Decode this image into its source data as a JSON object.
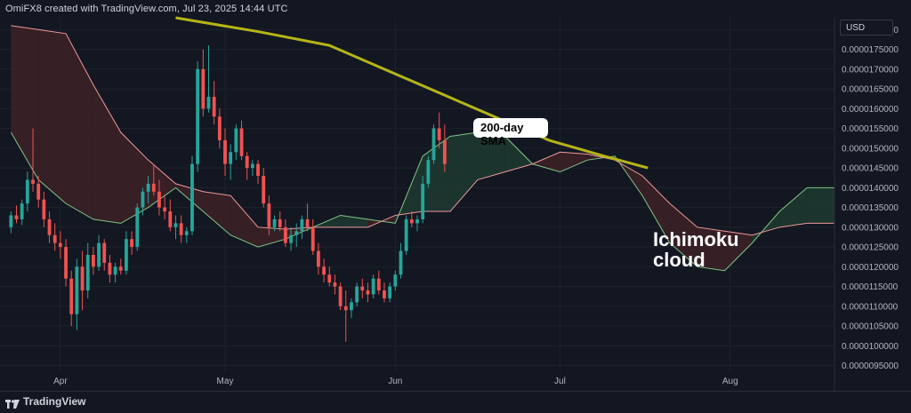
{
  "header": {
    "text": "OmiFX8 created with TradingView.com, Jul 23, 2025 14:44 UTC"
  },
  "currency": "USD",
  "footer": {
    "brand": "TradingView"
  },
  "annotations": {
    "sma_label": "200-day SMA",
    "cloud_label": "Ichimoku cloud"
  },
  "colors": {
    "background": "#131722",
    "up": "#26a69a",
    "down": "#ef5350",
    "sma": "#b5b517",
    "cloud_bull": "#1e3a30",
    "cloud_bear": "#3d2126",
    "span_a": "#81c784",
    "span_b": "#ef9a9a"
  },
  "chart_data": {
    "type": "candlestick",
    "title": "",
    "ylabel": "",
    "ylim": [
      9.4e-06,
      1.83e-05
    ],
    "y_ticks": [
      "0.0000095000",
      "0.0000100000",
      "0.0000105000",
      "0.0000110000",
      "0.0000115000",
      "0.0000120000",
      "0.0000125000",
      "0.0000130000",
      "0.0000135000",
      "0.0000140000",
      "0.0000145000",
      "0.0000150000",
      "0.0000155000",
      "0.0000160000",
      "0.0000165000",
      "0.0000170000",
      "0.0000175000",
      "0.0000180000"
    ],
    "x_ticks": [
      "Apr",
      "May",
      "Jun",
      "Jul",
      "Aug"
    ],
    "x_tick_days": [
      9,
      39,
      70,
      100,
      131
    ],
    "x_range_days": [
      -2,
      150
    ],
    "candles_start_day": 0,
    "candles": [
      [
        13.0,
        13.4,
        12.85,
        13.3
      ],
      [
        13.3,
        13.55,
        13.1,
        13.2
      ],
      [
        13.2,
        13.7,
        13.05,
        13.6
      ],
      [
        13.6,
        14.4,
        13.4,
        14.2
      ],
      [
        14.2,
        15.5,
        13.9,
        14.1
      ],
      [
        14.1,
        14.3,
        13.5,
        13.7
      ],
      [
        13.7,
        13.9,
        13.0,
        13.2
      ],
      [
        13.2,
        13.4,
        12.6,
        12.8
      ],
      [
        12.8,
        13.1,
        12.4,
        12.6
      ],
      [
        12.6,
        12.9,
        12.2,
        12.5
      ],
      [
        12.5,
        12.7,
        11.5,
        11.7
      ],
      [
        11.7,
        11.9,
        10.5,
        10.8
      ],
      [
        10.8,
        12.2,
        10.4,
        12.0
      ],
      [
        12.0,
        12.4,
        10.9,
        11.4
      ],
      [
        11.4,
        12.6,
        11.2,
        12.3
      ],
      [
        12.3,
        12.5,
        11.8,
        12.0
      ],
      [
        12.0,
        12.8,
        11.9,
        12.6
      ],
      [
        12.6,
        12.7,
        11.9,
        12.1
      ],
      [
        12.1,
        12.3,
        11.6,
        11.8
      ],
      [
        11.8,
        12.1,
        11.6,
        12.0
      ],
      [
        12.0,
        12.2,
        11.8,
        11.9
      ],
      [
        11.9,
        12.9,
        11.8,
        12.7
      ],
      [
        12.7,
        12.9,
        12.3,
        12.5
      ],
      [
        12.5,
        13.6,
        12.4,
        13.5
      ],
      [
        13.5,
        14.0,
        13.3,
        13.9
      ],
      [
        13.9,
        14.3,
        13.6,
        14.1
      ],
      [
        14.1,
        14.6,
        13.8,
        13.9
      ],
      [
        13.9,
        14.2,
        13.3,
        13.5
      ],
      [
        13.5,
        13.8,
        13.2,
        13.4
      ],
      [
        13.4,
        13.7,
        12.9,
        13.0
      ],
      [
        13.0,
        13.3,
        12.7,
        13.1
      ],
      [
        13.1,
        13.3,
        12.6,
        12.8
      ],
      [
        12.8,
        13.0,
        12.6,
        12.9
      ],
      [
        12.9,
        14.8,
        12.8,
        14.6
      ],
      [
        14.6,
        17.2,
        14.4,
        17.0
      ],
      [
        17.0,
        17.5,
        15.8,
        16.0
      ],
      [
        16.0,
        17.6,
        15.9,
        16.3
      ],
      [
        16.3,
        16.7,
        15.6,
        15.8
      ],
      [
        15.8,
        16.0,
        15.0,
        15.2
      ],
      [
        15.2,
        15.5,
        14.3,
        14.6
      ],
      [
        14.6,
        15.1,
        14.2,
        14.9
      ],
      [
        14.9,
        15.6,
        14.7,
        15.5
      ],
      [
        15.5,
        15.7,
        14.7,
        14.8
      ],
      [
        14.8,
        14.9,
        14.2,
        14.5
      ],
      [
        14.5,
        14.7,
        14.3,
        14.6
      ],
      [
        14.6,
        14.7,
        14.1,
        14.3
      ],
      [
        14.3,
        14.5,
        13.5,
        13.6
      ],
      [
        13.6,
        13.8,
        12.8,
        13.0
      ],
      [
        13.0,
        13.3,
        12.9,
        13.2
      ],
      [
        13.2,
        13.4,
        12.9,
        13.0
      ],
      [
        13.0,
        13.2,
        12.5,
        12.6
      ],
      [
        12.6,
        13.0,
        12.4,
        12.8
      ],
      [
        12.8,
        13.1,
        12.5,
        12.9
      ],
      [
        12.9,
        13.3,
        12.7,
        13.2
      ],
      [
        13.2,
        13.6,
        12.9,
        13.0
      ],
      [
        13.0,
        13.2,
        12.3,
        12.4
      ],
      [
        12.4,
        12.6,
        11.8,
        12.0
      ],
      [
        12.0,
        12.2,
        11.6,
        11.8
      ],
      [
        11.8,
        12.0,
        11.5,
        11.6
      ],
      [
        11.6,
        11.8,
        11.3,
        11.5
      ],
      [
        11.5,
        11.6,
        10.9,
        11.0
      ],
      [
        11.0,
        11.4,
        10.1,
        10.9
      ],
      [
        10.9,
        11.2,
        10.7,
        11.1
      ],
      [
        11.1,
        11.6,
        11.0,
        11.5
      ],
      [
        11.5,
        11.7,
        11.2,
        11.4
      ],
      [
        11.4,
        11.6,
        11.1,
        11.3
      ],
      [
        11.3,
        11.8,
        11.2,
        11.7
      ],
      [
        11.7,
        11.9,
        11.3,
        11.4
      ],
      [
        11.4,
        11.6,
        11.1,
        11.2
      ],
      [
        11.2,
        11.6,
        11.1,
        11.5
      ],
      [
        11.5,
        11.9,
        11.4,
        11.8
      ],
      [
        11.8,
        12.6,
        11.7,
        12.4
      ],
      [
        12.4,
        13.3,
        12.3,
        13.2
      ],
      [
        13.2,
        13.4,
        13.0,
        13.1
      ],
      [
        13.1,
        13.3,
        12.9,
        13.2
      ],
      [
        13.2,
        14.3,
        13.1,
        14.1
      ],
      [
        14.1,
        14.8,
        14.0,
        14.7
      ],
      [
        14.7,
        15.6,
        14.6,
        15.5
      ],
      [
        15.5,
        15.9,
        15.0,
        15.2
      ],
      [
        15.2,
        15.6,
        14.4,
        14.6
      ]
    ],
    "sma_200": {
      "name": "200-day SMA",
      "days": [
        30,
        45,
        58,
        68,
        78,
        88,
        98,
        108,
        116
      ],
      "values": [
        18.3,
        17.95,
        17.6,
        17.0,
        16.4,
        15.8,
        15.2,
        14.8,
        14.5
      ]
    },
    "span_a": {
      "days": [
        0,
        5,
        10,
        15,
        20,
        25,
        30,
        35,
        40,
        45,
        50,
        55,
        60,
        65,
        70,
        75,
        80,
        85,
        90,
        95,
        100,
        105,
        110,
        115,
        120,
        125,
        130,
        135,
        140,
        145,
        150
      ],
      "values": [
        15.4,
        14.2,
        13.6,
        13.2,
        13.1,
        13.5,
        14.0,
        13.4,
        12.8,
        12.5,
        12.7,
        13.0,
        13.3,
        13.2,
        13.1,
        14.8,
        15.3,
        15.4,
        15.3,
        14.6,
        14.4,
        14.7,
        14.8,
        13.8,
        12.6,
        12.0,
        11.9,
        12.6,
        13.4,
        14.0,
        14.0
      ]
    },
    "span_b": {
      "days": [
        0,
        5,
        10,
        15,
        20,
        25,
        30,
        35,
        40,
        45,
        50,
        55,
        60,
        65,
        70,
        75,
        80,
        85,
        90,
        95,
        100,
        105,
        110,
        115,
        120,
        125,
        130,
        135,
        140,
        145,
        150
      ],
      "values": [
        18.1,
        18.0,
        17.9,
        16.6,
        15.4,
        14.7,
        14.1,
        13.9,
        13.8,
        13.0,
        12.95,
        13.0,
        13.0,
        13.0,
        13.3,
        13.4,
        13.4,
        14.2,
        14.4,
        14.6,
        14.9,
        14.85,
        14.7,
        14.3,
        13.6,
        13.0,
        12.9,
        12.8,
        13.0,
        13.1,
        13.1
      ]
    }
  }
}
